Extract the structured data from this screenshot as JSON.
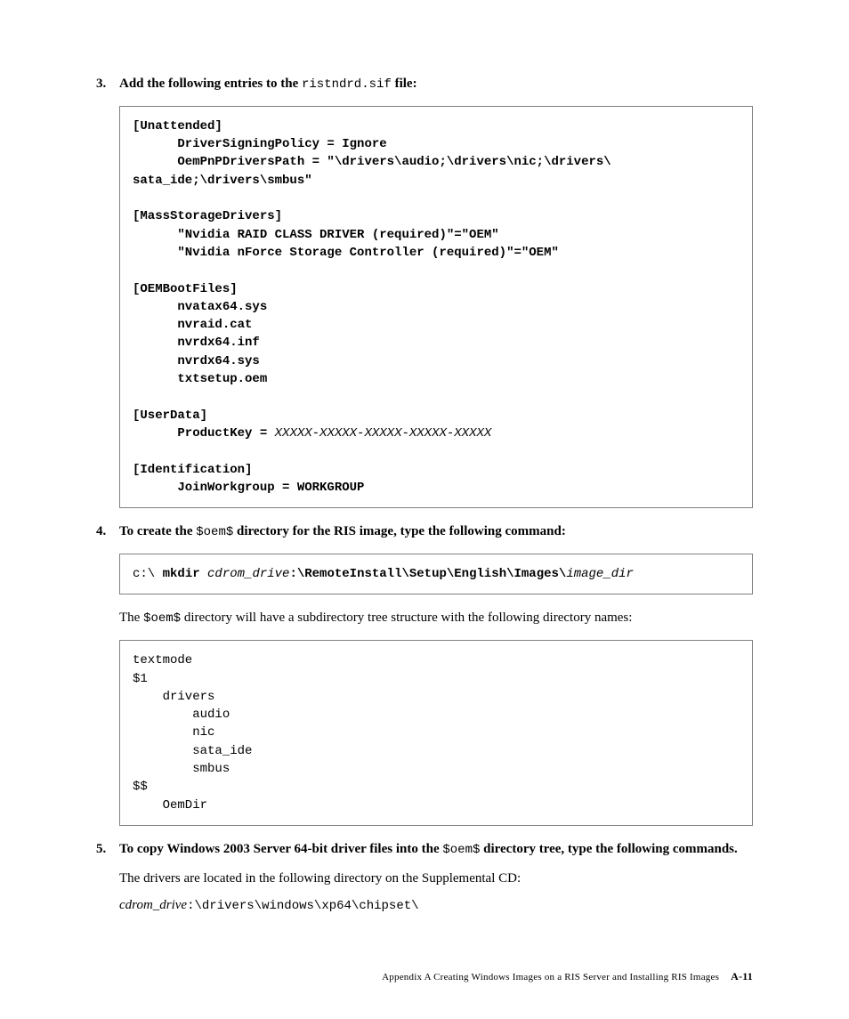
{
  "step3": {
    "num": "3.",
    "lead_bold": "Add the following entries to the ",
    "mono": "ristndrd.sif",
    "tail_bold": " file:",
    "code": "[Unattended]\n      DriverSigningPolicy = Ignore\n      OemPnPDriversPath = \"\\drivers\\audio;\\drivers\\nic;\\drivers\\\nsata_ide;\\drivers\\smbus\"\n\n[MassStorageDrivers]\n      \"Nvidia RAID CLASS DRIVER (required)\"=\"OEM\"\n      \"Nvidia nForce Storage Controller (required)\"=\"OEM\"\n\n[OEMBootFiles]\n      nvatax64.sys\n      nvraid.cat\n      nvrdx64.inf\n      nvrdx64.sys\n      txtsetup.oem\n\n[UserData]",
    "productkey_label": "      ProductKey = ",
    "productkey_value": "XXXXX-XXXXX-XXXXX-XXXXX-XXXXX",
    "code_tail": "\n[Identification]\n      JoinWorkgroup = WORKGROUP"
  },
  "step4": {
    "num": "4.",
    "lead_bold": "To create the ",
    "mono1": "$oem$",
    "tail_bold": " directory for the RIS image, type the following command:",
    "cmd_prefix": "c:\\ ",
    "cmd_mkdir": "mkdir ",
    "cmd_drive": "cdrom_drive",
    "cmd_path": ":\\RemoteInstall\\Setup\\English\\Images\\",
    "cmd_image": "image_dir",
    "sub_text1": "The ",
    "sub_mono": "$oem$",
    "sub_text2": " directory will have a subdirectory tree structure with the following directory names:",
    "tree": "textmode\n$1\n    drivers\n        audio\n        nic\n        sata_ide\n        smbus\n$$\n    OemDir"
  },
  "step5": {
    "num": "5.",
    "lead_bold": "To copy Windows 2003 Server 64-bit driver files into the ",
    "mono1": "$oem$",
    "tail_bold": " directory tree, type the following commands.",
    "sub_text": "The drivers are located in the following directory on the Supplemental CD:",
    "path_italic": "cdrom_drive",
    "path_mono": ":\\drivers\\windows\\xp64\\chipset\\"
  },
  "footer": {
    "appendix": "Appendix A    Creating Windows Images on a RIS Server and Installing RIS Images",
    "page": "A-11"
  }
}
